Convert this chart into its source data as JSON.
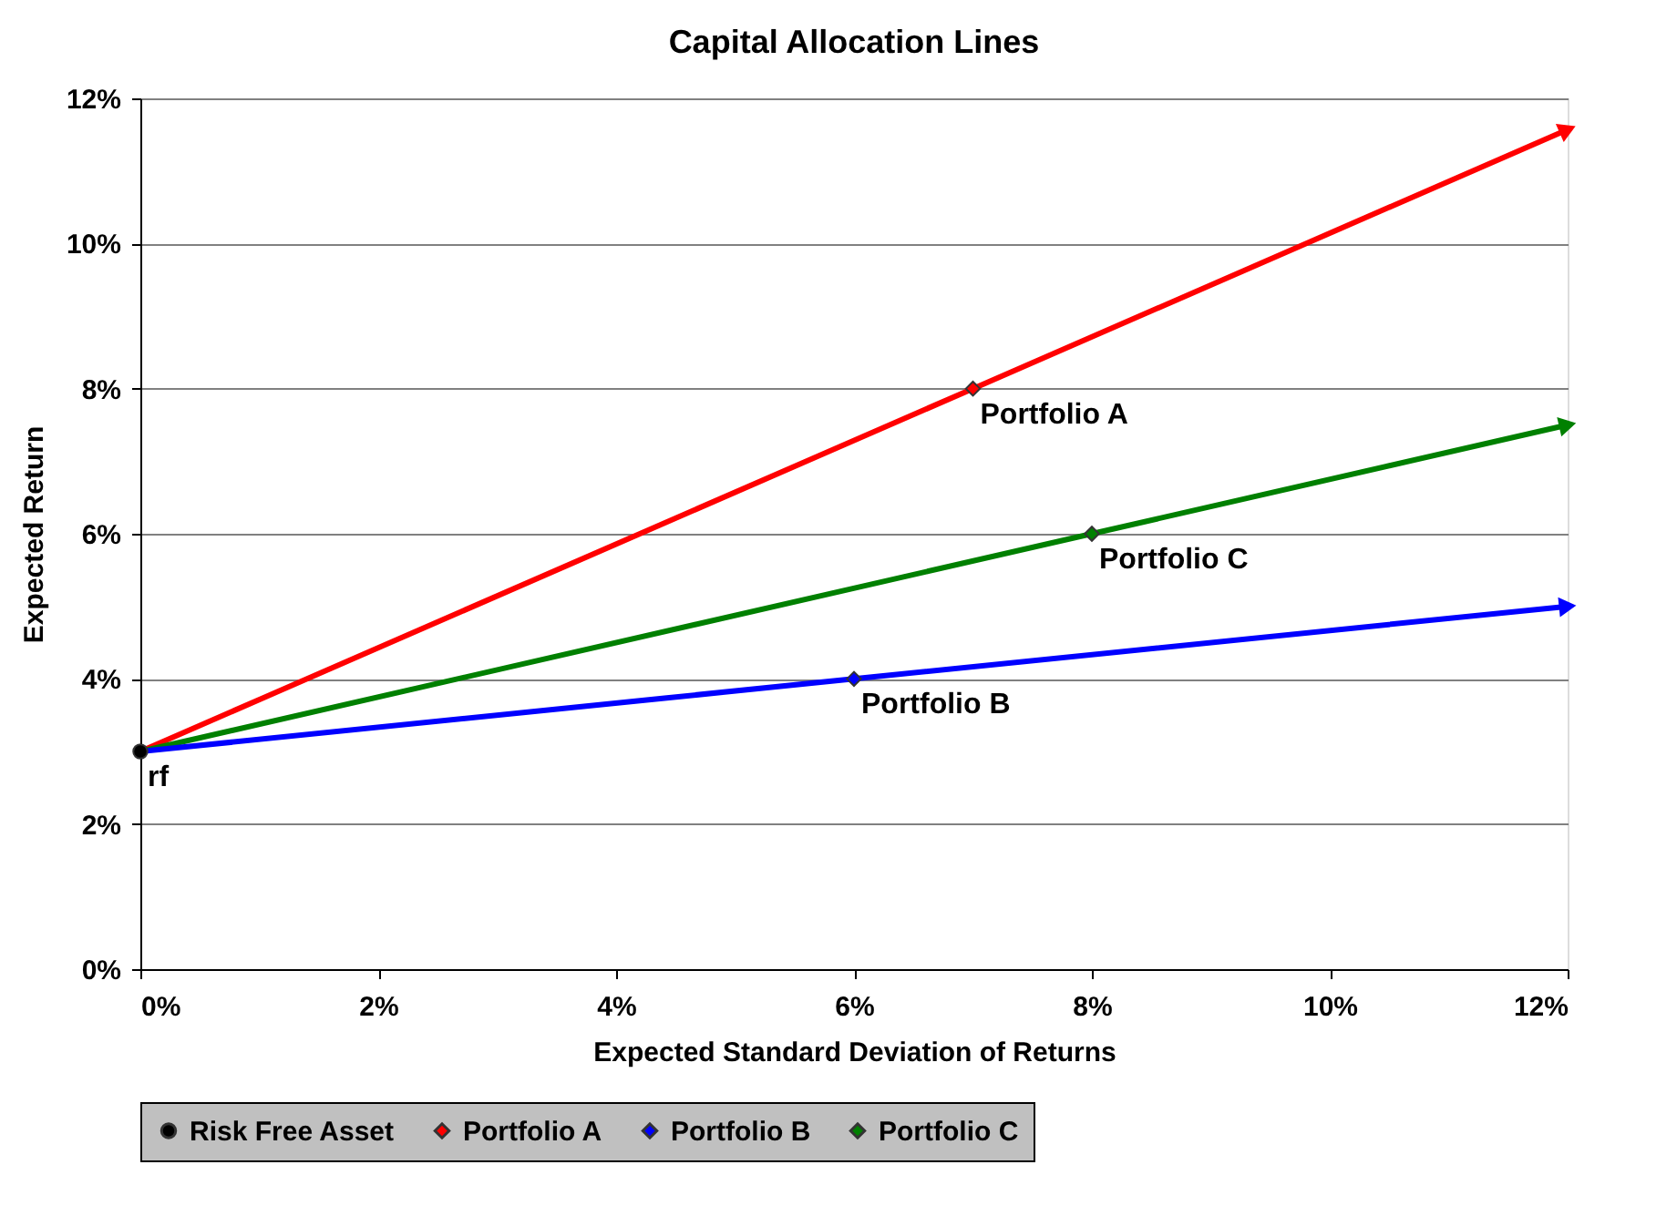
{
  "chart_data": {
    "type": "line",
    "title": "Capital Allocation Lines",
    "xlabel": "Expected Standard Deviation of Returns",
    "ylabel": "Expected Return",
    "xlim": [
      0,
      12
    ],
    "ylim": [
      0,
      12
    ],
    "xticks": [
      {
        "value": 0,
        "label": "0%"
      },
      {
        "value": 2,
        "label": "2%"
      },
      {
        "value": 4,
        "label": "4%"
      },
      {
        "value": 6,
        "label": "6%"
      },
      {
        "value": 8,
        "label": "8%"
      },
      {
        "value": 10,
        "label": "10%"
      },
      {
        "value": 12,
        "label": "12%"
      }
    ],
    "yticks": [
      {
        "value": 0,
        "label": "0%"
      },
      {
        "value": 2,
        "label": "2%"
      },
      {
        "value": 4,
        "label": "4%"
      },
      {
        "value": 6,
        "label": "6%"
      },
      {
        "value": 8,
        "label": "8%"
      },
      {
        "value": 10,
        "label": "10%"
      },
      {
        "value": 12,
        "label": "12%"
      }
    ],
    "grid": "y",
    "legend": "bottom",
    "series": [
      {
        "type": "line",
        "color": "#ff0000",
        "x": [
          0,
          7,
          12
        ],
        "values": [
          3,
          8,
          11.57
        ]
      },
      {
        "type": "line",
        "color": "#008000",
        "x": [
          0,
          8,
          12
        ],
        "values": [
          3,
          6,
          7.5
        ]
      },
      {
        "type": "line",
        "color": "#0000ff",
        "x": [
          0,
          6,
          12
        ],
        "values": [
          3,
          4,
          5
        ]
      },
      {
        "type": "scatter",
        "name": "Risk Free Asset",
        "color": "#000000",
        "marker": "circle",
        "x": [
          0
        ],
        "values": [
          3
        ]
      },
      {
        "type": "scatter",
        "name": "Portfolio A",
        "color": "#ff0000",
        "marker": "diamond",
        "x": [
          7
        ],
        "values": [
          8
        ]
      },
      {
        "type": "scatter",
        "name": "Portfolio B",
        "color": "#0000ff",
        "marker": "diamond",
        "x": [
          6
        ],
        "values": [
          4
        ]
      },
      {
        "type": "scatter",
        "name": "Portfolio C",
        "color": "#008000",
        "marker": "diamond",
        "x": [
          8
        ],
        "values": [
          6
        ]
      }
    ],
    "annotations": [
      {
        "text": "rf",
        "x": 0,
        "y": 3
      },
      {
        "text": "Portfolio A",
        "x": 7,
        "y": 8
      },
      {
        "text": "Portfolio B",
        "x": 6,
        "y": 4
      },
      {
        "text": "Portfolio C",
        "x": 8,
        "y": 6
      }
    ]
  }
}
